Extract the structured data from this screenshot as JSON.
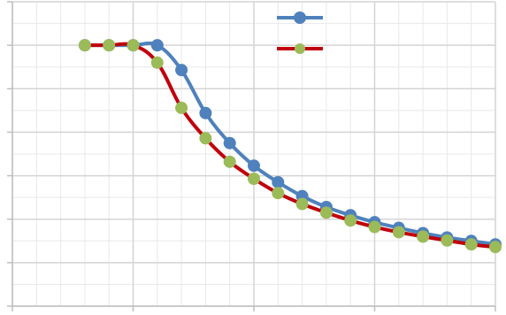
{
  "colors": {
    "series_blue": "#4f81bd",
    "series_red": "#c0000c",
    "marker_green": "#9bbb59",
    "grid_major": "#d4d4d4",
    "grid_minor": "#e8e8e8",
    "axis": "#bfbfbf"
  },
  "chart_data": {
    "type": "line",
    "title": "",
    "xlabel": "",
    "ylabel": "",
    "grid": true,
    "legend_position": "top-right",
    "legend_label_text_visible": false,
    "series": [
      {
        "name": "",
        "line_color": "#4f81bd",
        "marker_color": "#4f81bd",
        "x": [
          6,
          7,
          8,
          9,
          10,
          11,
          12,
          13,
          14,
          15,
          16,
          17,
          18,
          19,
          20,
          21,
          22,
          23
        ],
        "y": [
          6.0,
          6.0,
          6.0,
          6.0,
          5.43,
          4.44,
          3.75,
          3.23,
          2.85,
          2.53,
          2.28,
          2.09,
          1.93,
          1.8,
          1.68,
          1.58,
          1.5,
          1.42
        ]
      },
      {
        "name": "",
        "line_color": "#c0000c",
        "marker_color": "#9bbb59",
        "x": [
          6,
          7,
          8,
          9,
          10,
          11,
          12,
          13,
          14,
          15,
          16,
          17,
          18,
          19,
          20,
          21,
          22,
          23
        ],
        "y": [
          6.0,
          6.0,
          6.0,
          5.6,
          4.56,
          3.86,
          3.32,
          2.93,
          2.6,
          2.35,
          2.15,
          1.97,
          1.82,
          1.7,
          1.6,
          1.51,
          1.42,
          1.36
        ]
      }
    ]
  }
}
